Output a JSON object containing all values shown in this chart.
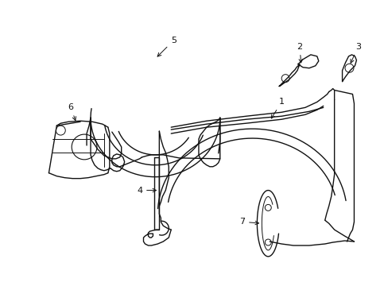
{
  "background_color": "#ffffff",
  "line_color": "#111111",
  "line_width": 1.0,
  "label_color": "#000000",
  "label_fontsize": 8,
  "fig_width": 4.89,
  "fig_height": 3.6,
  "dpi": 100
}
